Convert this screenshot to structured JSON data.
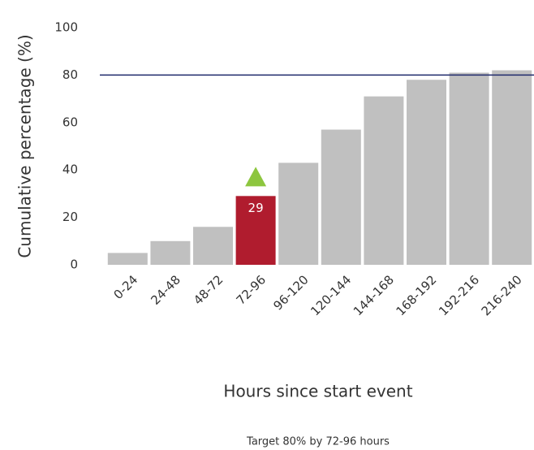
{
  "chart_data": {
    "type": "bar",
    "categories": [
      "0-24",
      "24-48",
      "48-72",
      "72-96",
      "96-120",
      "120-144",
      "144-168",
      "168-192",
      "192-216",
      "216-240"
    ],
    "values": [
      5,
      10,
      16,
      29,
      43,
      57,
      71,
      78,
      81,
      82
    ],
    "color": "#c0c0c0",
    "colors": [
      "#c0c0c0",
      "#c0c0c0",
      "#c0c0c0",
      "#b01c2e",
      "#c0c0c0",
      "#c0c0c0",
      "#c0c0c0",
      "#c0c0c0",
      "#c0c0c0",
      "#c0c0c0"
    ],
    "marker_color": "#8dc63f",
    "target": 80,
    "target_color": "#1f2a6b",
    "ylabel": "Cumulative percentage (%)",
    "xlabel": "Hours since start event",
    "caption": "Target 80% by 72-96 hours",
    "ylim": [
      0,
      100
    ],
    "yticks": [
      0,
      20,
      40,
      60,
      80,
      100
    ],
    "grid": false
  }
}
